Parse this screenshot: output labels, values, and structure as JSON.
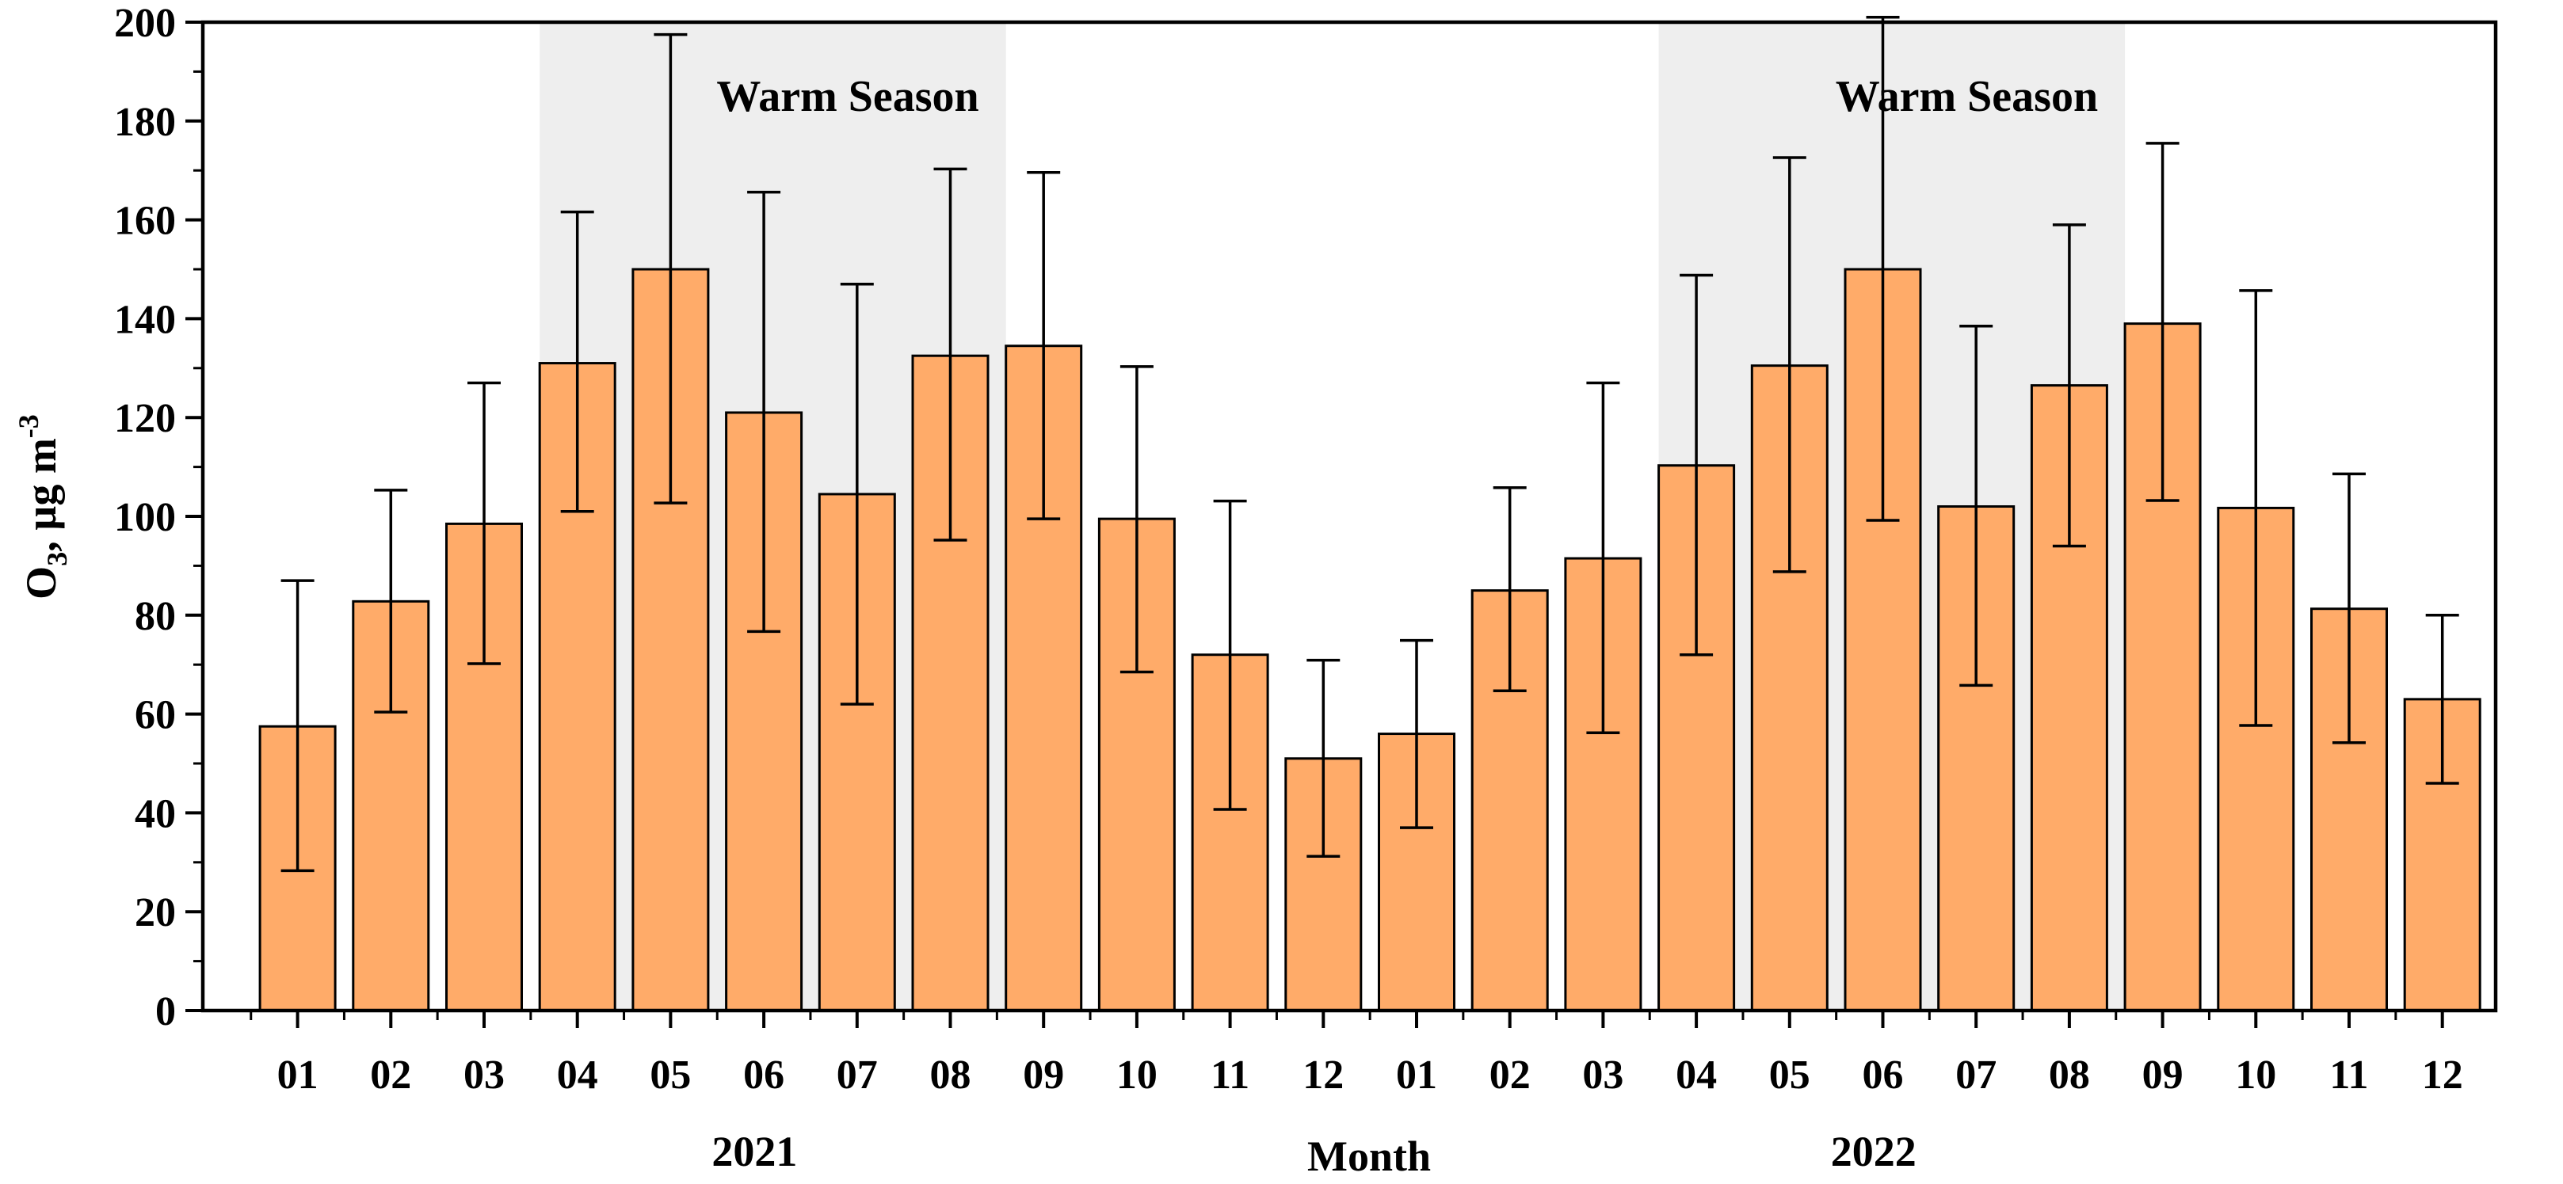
{
  "chart_data": {
    "type": "bar",
    "title": "",
    "xlabel": "Month",
    "ylabel": {
      "base": "O",
      "sub": "3",
      "mid": ", µg m",
      "sup": "-3"
    },
    "ylim": [
      0,
      200
    ],
    "yticks": [
      "0",
      "20",
      "40",
      "60",
      "80",
      "100",
      "120",
      "140",
      "160",
      "180",
      "200"
    ],
    "categories": [
      "01",
      "02",
      "03",
      "04",
      "05",
      "06",
      "07",
      "08",
      "09",
      "10",
      "11",
      "12",
      "01",
      "02",
      "03",
      "04",
      "05",
      "06",
      "07",
      "08",
      "09",
      "10",
      "11",
      "12"
    ],
    "values": [
      57.5,
      82.8,
      98.5,
      131.0,
      150.0,
      121.0,
      104.5,
      132.5,
      134.5,
      99.5,
      72.0,
      51.0,
      56.0,
      85.0,
      91.5,
      110.3,
      130.5,
      150.0,
      102.0,
      126.5,
      139.0,
      101.7,
      81.3,
      63.0
    ],
    "error_low": [
      28.3,
      60.4,
      70.2,
      101.0,
      102.7,
      76.7,
      62.0,
      95.2,
      99.5,
      68.5,
      40.7,
      31.2,
      37.0,
      64.7,
      56.2,
      72.0,
      88.8,
      99.2,
      65.8,
      94.0,
      103.2,
      57.7,
      54.2,
      46.0
    ],
    "error_high": [
      87.0,
      105.3,
      127.0,
      161.6,
      197.5,
      165.6,
      147.0,
      170.3,
      169.6,
      130.3,
      103.1,
      70.9,
      74.9,
      105.8,
      127.0,
      148.8,
      172.6,
      201.0,
      138.5,
      159.0,
      175.5,
      145.7,
      108.6,
      80.0
    ],
    "year_labels": [
      {
        "label": "2021",
        "center_index": 5.5
      },
      {
        "label": "2022",
        "center_index": 17.5
      }
    ],
    "warm_seasons": [
      {
        "label": "Warm Season",
        "start_index": 3,
        "end_index": 8
      },
      {
        "label": "Warm Season",
        "start_index": 15,
        "end_index": 20
      }
    ],
    "colors": {
      "bar_fill": "#FFAB69",
      "bar_stroke": "#000000",
      "warm_band": "#EEEEEE",
      "axis": "#000000"
    }
  }
}
